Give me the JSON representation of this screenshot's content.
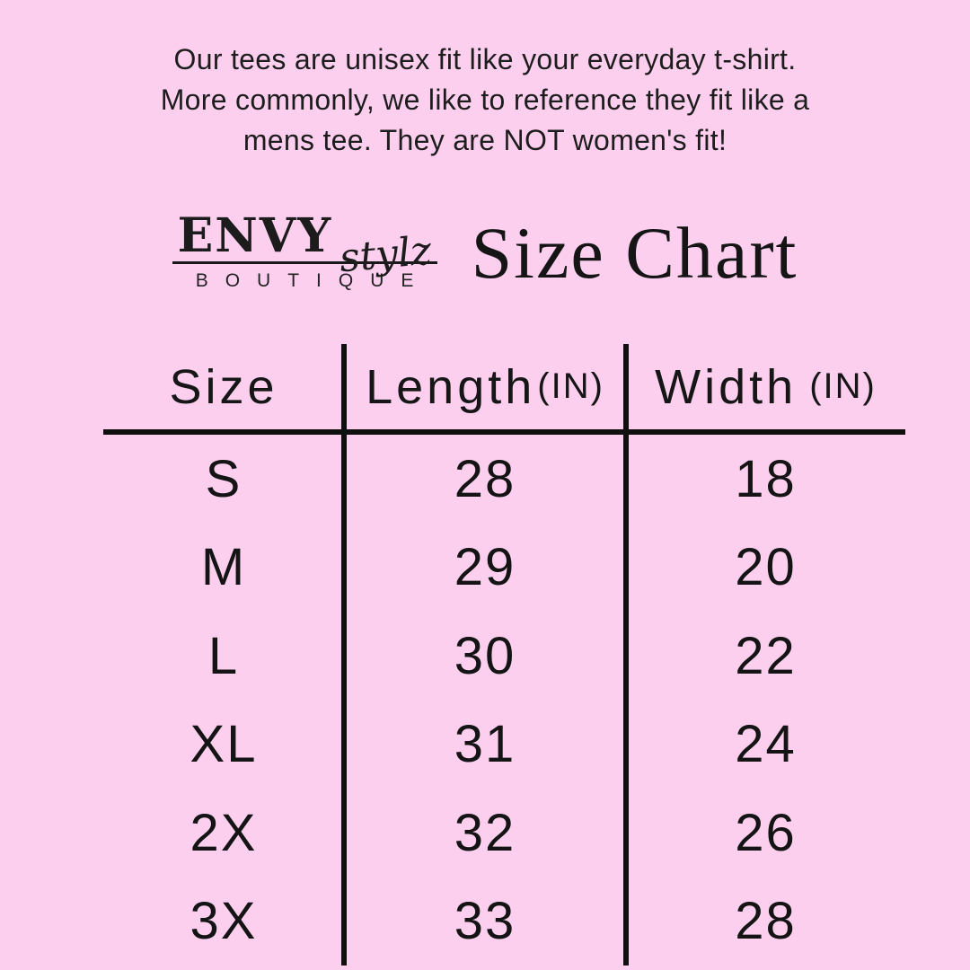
{
  "page": {
    "background_color": "#fdcfef",
    "text_color": "#1c1c1c",
    "line_color": "#101010"
  },
  "intro": {
    "lines": [
      "Our tees are unisex fit like your everyday t-shirt.",
      "More commonly, we like to reference they fit like a",
      "mens tee. They are NOT women's fit!"
    ]
  },
  "brand": {
    "name": "ENVY",
    "script": "stylz",
    "subtitle": "BOUTIQUE"
  },
  "title": "Size Chart",
  "table": {
    "headers": [
      {
        "label": "Size",
        "unit": ""
      },
      {
        "label": "Length",
        "unit": "(IN)"
      },
      {
        "label": "Width",
        "unit": "(IN)"
      }
    ],
    "rows": [
      {
        "size": "S",
        "length": "28",
        "width": "18"
      },
      {
        "size": "M",
        "length": "29",
        "width": "20"
      },
      {
        "size": "L",
        "length": "30",
        "width": "22"
      },
      {
        "size": "XL",
        "length": "31",
        "width": "24"
      },
      {
        "size": "2X",
        "length": "32",
        "width": "26"
      },
      {
        "size": "3X",
        "length": "33",
        "width": "28"
      }
    ]
  },
  "chart_data": {
    "type": "table",
    "title": "Size Chart",
    "columns": [
      "Size",
      "Length (IN)",
      "Width (IN)"
    ],
    "rows": [
      [
        "S",
        28,
        18
      ],
      [
        "M",
        29,
        20
      ],
      [
        "L",
        30,
        22
      ],
      [
        "XL",
        31,
        24
      ],
      [
        "2X",
        32,
        26
      ],
      [
        "3X",
        33,
        28
      ]
    ],
    "units": "inches",
    "note": "Our tees are unisex fit like your everyday t-shirt. More commonly, we like to reference they fit like a mens tee. They are NOT women's fit!"
  }
}
